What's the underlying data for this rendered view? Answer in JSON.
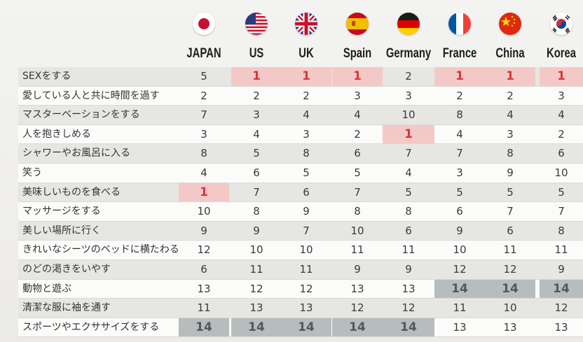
{
  "countries": [
    {
      "name": "JAPAN",
      "flag_icon": "japan-flag-icon"
    },
    {
      "name": "US",
      "flag_icon": "us-flag-icon"
    },
    {
      "name": "UK",
      "flag_icon": "uk-flag-icon"
    },
    {
      "name": "Spain",
      "flag_icon": "spain-flag-icon"
    },
    {
      "name": "Germany",
      "flag_icon": "germany-flag-icon"
    },
    {
      "name": "France",
      "flag_icon": "france-flag-icon"
    },
    {
      "name": "China",
      "flag_icon": "china-flag-icon"
    },
    {
      "name": "Korea",
      "flag_icon": "korea-flag-icon"
    }
  ],
  "rows": [
    {
      "activity": "SEXをする",
      "ranks": [
        5,
        1,
        1,
        1,
        2,
        1,
        1,
        1
      ]
    },
    {
      "activity": "愛している人と共に時間を過す",
      "ranks": [
        2,
        2,
        2,
        3,
        3,
        2,
        2,
        3
      ]
    },
    {
      "activity": "マスターベーションをする",
      "ranks": [
        7,
        3,
        4,
        4,
        10,
        8,
        4,
        4
      ]
    },
    {
      "activity": "人を抱きしめる",
      "ranks": [
        3,
        4,
        3,
        2,
        1,
        4,
        3,
        2
      ]
    },
    {
      "activity": "シャワーやお風呂に入る",
      "ranks": [
        8,
        5,
        8,
        6,
        7,
        7,
        8,
        6
      ]
    },
    {
      "activity": "笑う",
      "ranks": [
        4,
        6,
        5,
        5,
        4,
        3,
        9,
        10
      ]
    },
    {
      "activity": "美味しいものを食べる",
      "ranks": [
        1,
        7,
        6,
        7,
        5,
        5,
        5,
        5
      ]
    },
    {
      "activity": "マッサージをする",
      "ranks": [
        10,
        8,
        9,
        8,
        8,
        6,
        7,
        7
      ]
    },
    {
      "activity": "美しい場所に行く",
      "ranks": [
        9,
        9,
        7,
        10,
        6,
        9,
        6,
        8
      ]
    },
    {
      "activity": "きれいなシーツのベッドに横たわる",
      "ranks": [
        12,
        10,
        10,
        11,
        11,
        10,
        11,
        11
      ]
    },
    {
      "activity": "のどの渇きをいやす",
      "ranks": [
        6,
        11,
        11,
        9,
        9,
        12,
        12,
        9
      ]
    },
    {
      "activity": "動物と遊ぶ",
      "ranks": [
        13,
        12,
        12,
        13,
        13,
        14,
        14,
        14
      ]
    },
    {
      "activity": "清潔な服に袖を通す",
      "ranks": [
        11,
        13,
        13,
        12,
        12,
        11,
        10,
        12
      ]
    },
    {
      "activity": "スポーツやエクササイズをする",
      "ranks": [
        14,
        14,
        14,
        14,
        14,
        13,
        13,
        13
      ]
    }
  ],
  "colors": {
    "top_rank_bg": "#f3c9c8",
    "top_rank_text": "#d8353a",
    "bottom_rank_bg": "#b7bcbc",
    "bottom_rank_text": "#53595b"
  }
}
